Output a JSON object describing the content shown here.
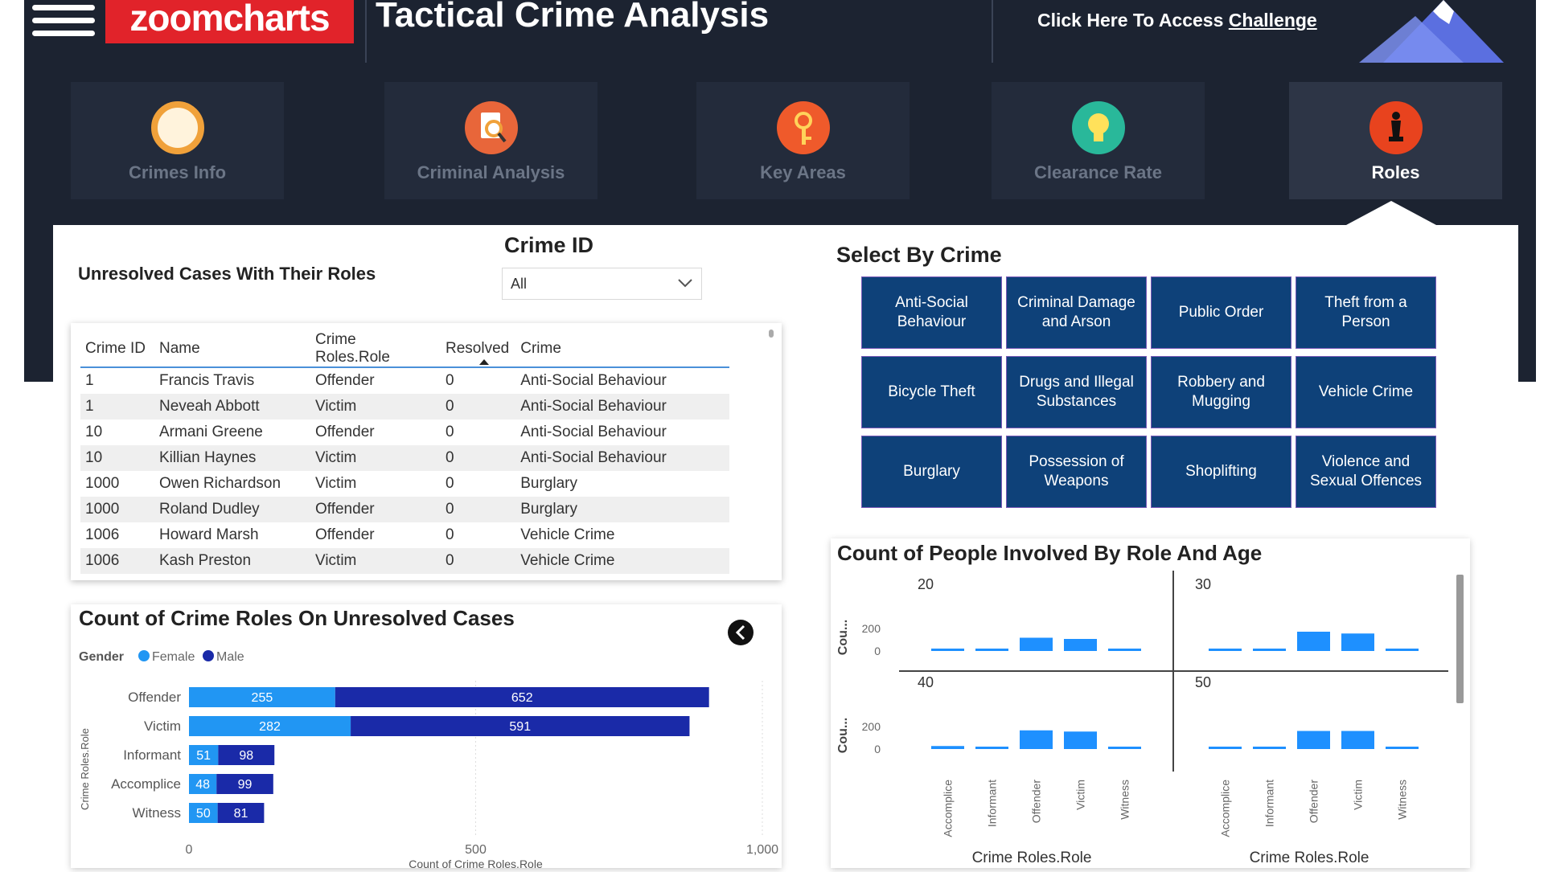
{
  "header": {
    "logo": "zoomcharts",
    "title": "Tactical Crime Analysis",
    "challenge_prefix": "Click Here To Access",
    "challenge_link": "Challenge"
  },
  "nav": [
    {
      "label": "Crimes Info",
      "icon": "donut-chart-icon",
      "color": "#f0a13a"
    },
    {
      "label": "Criminal Analysis",
      "icon": "magnifier-document-icon",
      "color": "#e8663a"
    },
    {
      "label": "Key Areas",
      "icon": "key-icon",
      "color": "#ef5a2b"
    },
    {
      "label": "Clearance Rate",
      "icon": "lightbulb-icon",
      "color": "#29b89a"
    },
    {
      "label": "Roles",
      "icon": "chess-piece-icon",
      "color": "#e8431e"
    }
  ],
  "unresolved": {
    "heading": "Unresolved Cases With Their Roles",
    "filter_title": "Crime ID",
    "filter_value": "All",
    "columns": [
      "Crime ID",
      "Name",
      "Crime Roles.Role",
      "Resolved",
      "Crime"
    ],
    "rows": [
      [
        "1",
        "Francis Travis",
        "Offender",
        "0",
        "Anti-Social Behaviour"
      ],
      [
        "1",
        "Neveah Abbott",
        "Victim",
        "0",
        "Anti-Social Behaviour"
      ],
      [
        "10",
        "Armani Greene",
        "Offender",
        "0",
        "Anti-Social Behaviour"
      ],
      [
        "10",
        "Killian Haynes",
        "Victim",
        "0",
        "Anti-Social Behaviour"
      ],
      [
        "1000",
        "Owen Richardson",
        "Victim",
        "0",
        "Burglary"
      ],
      [
        "1000",
        "Roland Dudley",
        "Offender",
        "0",
        "Burglary"
      ],
      [
        "1006",
        "Howard Marsh",
        "Offender",
        "0",
        "Vehicle Crime"
      ],
      [
        "1006",
        "Kash Preston",
        "Victim",
        "0",
        "Vehicle Crime"
      ]
    ]
  },
  "select_by_crime": {
    "heading": "Select By Crime",
    "buttons": [
      [
        "Anti-Social",
        "Behaviour"
      ],
      [
        "Criminal Damage",
        "and Arson"
      ],
      [
        "Public Order"
      ],
      [
        "Theft from a",
        "Person"
      ],
      [
        "Bicycle Theft"
      ],
      [
        "Drugs and Illegal",
        "Substances"
      ],
      [
        "Robbery and",
        "Mugging"
      ],
      [
        "Vehicle Crime"
      ],
      [
        "Burglary"
      ],
      [
        "Possession of",
        "Weapons"
      ],
      [
        "Shoplifting"
      ],
      [
        "Violence and",
        "Sexual Offences"
      ]
    ]
  },
  "colors": {
    "female": "#2196f3",
    "male": "#1a2aa8",
    "small_bar": "#1e90ff",
    "button": "#0e4179"
  },
  "chart_data": [
    {
      "type": "bar",
      "orientation": "horizontal",
      "stacked": true,
      "title": "Count of Crime Roles On Unresolved Cases",
      "legend_title": "Gender",
      "legend_position": "top-left",
      "xlabel": "Count of Crime Roles.Role",
      "ylabel": "Crime Roles.Role",
      "xlim": [
        0,
        1000
      ],
      "xticks": [
        "0",
        "500",
        "1,000"
      ],
      "categories": [
        "Offender",
        "Victim",
        "Informant",
        "Accomplice",
        "Witness"
      ],
      "series": [
        {
          "name": "Female",
          "values": [
            255,
            282,
            51,
            48,
            50
          ]
        },
        {
          "name": "Male",
          "values": [
            652,
            591,
            98,
            99,
            81
          ]
        }
      ]
    },
    {
      "type": "bar",
      "title": "Count of People Involved By Role And Age",
      "xlabel": "Crime Roles.Role",
      "ylabel": "Cou...",
      "yticks": [
        "200",
        "0"
      ],
      "ylim": [
        0,
        250
      ],
      "categories": [
        "Accomplice",
        "Informant",
        "Offender",
        "Victim",
        "Witness"
      ],
      "panels": [
        {
          "name": "20",
          "values": [
            20,
            15,
            110,
            100,
            10
          ]
        },
        {
          "name": "30",
          "values": [
            20,
            20,
            160,
            145,
            20
          ]
        },
        {
          "name": "40",
          "values": [
            25,
            20,
            155,
            145,
            20
          ]
        },
        {
          "name": "50",
          "values": [
            20,
            20,
            150,
            150,
            20
          ]
        }
      ]
    }
  ]
}
